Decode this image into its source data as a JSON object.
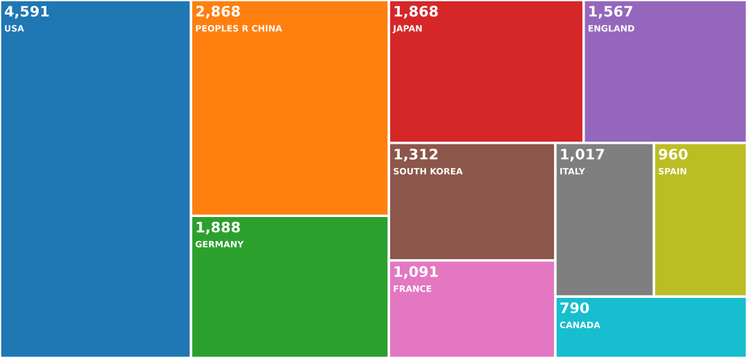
{
  "chart_data": {
    "type": "other",
    "categories": [
      "USA",
      "PEOPLES R CHINA",
      "GERMANY",
      "JAPAN",
      "ENGLAND",
      "SOUTH KOREA",
      "FRANCE",
      "ITALY",
      "SPAIN",
      "CANADA"
    ],
    "values": [
      4591,
      2868,
      1888,
      1868,
      1567,
      1312,
      1091,
      1017,
      960,
      790
    ],
    "colors": [
      "#1f77b4",
      "#ff7f0e",
      "#2ca02c",
      "#d62728",
      "#9467bd",
      "#8c564b",
      "#e377c2",
      "#7f7f7f",
      "#bcbd22",
      "#17becf"
    ],
    "value_labels": [
      "4,591",
      "2,868",
      "1,888",
      "1,868",
      "1,567",
      "1,312",
      "1,091",
      "1,017",
      "960",
      "790"
    ]
  }
}
